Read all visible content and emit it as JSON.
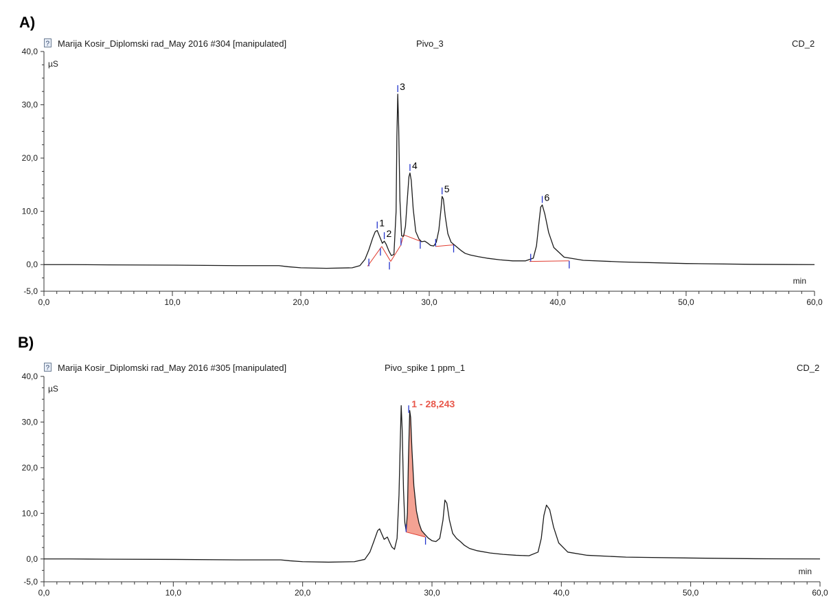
{
  "chart_data": [
    {
      "type": "line",
      "panel_label": "A)",
      "sample_name": "Marija Kosir_Diplomski rad_May 2016 #304 [manipulated]",
      "injection": "Pivo_3",
      "channel": "CD_2",
      "ylabel": "µS",
      "xlabel": "min",
      "xlim": [
        0,
        60
      ],
      "ylim": [
        -5,
        40
      ],
      "x_ticks": [
        "0,0",
        "10,0",
        "20,0",
        "30,0",
        "40,0",
        "50,0",
        "60,0"
      ],
      "y_ticks": [
        "-5,0",
        "0,0",
        "10,0",
        "20,0",
        "30,0",
        "40,0"
      ],
      "series": [
        {
          "x": [
            0,
            2,
            5,
            10,
            15,
            18.3,
            19,
            20,
            22,
            24,
            24.6,
            25.0,
            25.3,
            25.6,
            25.8,
            25.95,
            26.15,
            26.35,
            26.5,
            26.65,
            26.85,
            27.05,
            27.25,
            27.42,
            27.48,
            27.55,
            27.62,
            27.72,
            27.85,
            28.0,
            28.15,
            28.3,
            28.42,
            28.5,
            28.6,
            28.75,
            28.95,
            29.2,
            29.4,
            29.65,
            29.9,
            30.1,
            30.35,
            30.55,
            30.75,
            30.92,
            31.0,
            31.1,
            31.25,
            31.45,
            31.7,
            32.0,
            32.3,
            32.5,
            32.8,
            33.2,
            33.8,
            34.5,
            35.5,
            36.5,
            37.5,
            38.1,
            38.35,
            38.55,
            38.68,
            38.8,
            39.0,
            39.3,
            39.7,
            40.5,
            42,
            45,
            50,
            55,
            60
          ],
          "y": [
            0.0,
            0.0,
            -0.05,
            -0.1,
            -0.2,
            -0.2,
            -0.4,
            -0.6,
            -0.7,
            -0.6,
            -0.2,
            1.0,
            2.8,
            5.0,
            6.2,
            6.4,
            5.2,
            4.0,
            4.4,
            3.8,
            2.6,
            1.7,
            1.9,
            10.0,
            24.0,
            32.0,
            26.0,
            12.0,
            5.4,
            5.3,
            7.2,
            12.5,
            16.5,
            17.2,
            15.8,
            10.5,
            6.2,
            4.8,
            4.3,
            4.4,
            4.0,
            3.6,
            3.5,
            4.2,
            6.5,
            10.5,
            12.8,
            12.3,
            9.0,
            5.8,
            4.2,
            3.6,
            3.0,
            2.6,
            2.1,
            1.8,
            1.5,
            1.2,
            0.9,
            0.7,
            0.7,
            1.2,
            3.5,
            8.0,
            10.8,
            11.2,
            9.5,
            6.0,
            3.2,
            1.4,
            0.8,
            0.5,
            0.2,
            0.05,
            0.0
          ]
        }
      ],
      "baseline_segments": [
        [
          [
            25.2,
            -0.3
          ],
          [
            26.3,
            3.4
          ]
        ],
        [
          [
            26.3,
            3.4
          ],
          [
            27.0,
            0.6
          ]
        ],
        [
          [
            27.0,
            0.6
          ],
          [
            27.8,
            3.7
          ]
        ],
        [
          [
            27.8,
            3.7
          ],
          [
            28.0,
            5.6
          ]
        ],
        [
          [
            28.0,
            5.6
          ],
          [
            29.3,
            4.4
          ]
        ],
        [
          [
            30.5,
            3.4
          ],
          [
            31.9,
            3.7
          ]
        ],
        [
          [
            37.8,
            0.6
          ],
          [
            40.9,
            0.7
          ]
        ]
      ],
      "integration_marks": [
        {
          "x": 25.3,
          "y": -0.3,
          "dir": "up"
        },
        {
          "x": 26.2,
          "y": 3.1,
          "dir": "down"
        },
        {
          "x": 26.9,
          "y": 0.5,
          "dir": "down"
        },
        {
          "x": 27.8,
          "y": 3.6,
          "dir": "up"
        },
        {
          "x": 29.3,
          "y": 4.4,
          "dir": "down"
        },
        {
          "x": 30.5,
          "y": 3.4,
          "dir": "up"
        },
        {
          "x": 31.9,
          "y": 3.7,
          "dir": "down"
        },
        {
          "x": 37.9,
          "y": 0.6,
          "dir": "up"
        },
        {
          "x": 40.9,
          "y": 0.7,
          "dir": "down"
        }
      ],
      "peak_labels": [
        {
          "label": "1",
          "x": 25.95,
          "y": 6.4
        },
        {
          "label": "2",
          "x": 26.5,
          "y": 4.4
        },
        {
          "label": "3",
          "x": 27.55,
          "y": 32.0
        },
        {
          "label": "4",
          "x": 28.5,
          "y": 17.2
        },
        {
          "label": "5",
          "x": 31.0,
          "y": 12.8
        },
        {
          "label": "6",
          "x": 38.8,
          "y": 11.2
        }
      ]
    },
    {
      "type": "line",
      "panel_label": "B)",
      "sample_name": "Marija Kosir_Diplomski rad_May 2016 #305 [manipulated]",
      "injection": "Pivo_spike 1 ppm_1",
      "channel": "CD_2",
      "ylabel": "µS",
      "xlabel": "min",
      "xlim": [
        0,
        60
      ],
      "ylim": [
        -5,
        40
      ],
      "x_ticks": [
        "0,0",
        "10,0",
        "20,0",
        "30,0",
        "40,0",
        "50,0",
        "60,0"
      ],
      "y_ticks": [
        "-5,0",
        "0,0",
        "10,0",
        "20,0",
        "30,0",
        "40,0"
      ],
      "series": [
        {
          "x": [
            0,
            2,
            5,
            10,
            15,
            18.3,
            19,
            20,
            22,
            24,
            24.8,
            25.2,
            25.5,
            25.8,
            25.95,
            26.1,
            26.3,
            26.55,
            26.7,
            26.9,
            27.1,
            27.3,
            27.45,
            27.55,
            27.62,
            27.7,
            27.8,
            27.9,
            28.0,
            28.1,
            28.18,
            28.28,
            28.35,
            28.45,
            28.6,
            28.8,
            29.0,
            29.2,
            29.45,
            29.7,
            30.0,
            30.3,
            30.6,
            30.85,
            31.0,
            31.15,
            31.35,
            31.6,
            31.9,
            32.2,
            32.5,
            32.9,
            33.5,
            34.5,
            35.5,
            36.5,
            37.5,
            38.2,
            38.45,
            38.65,
            38.85,
            39.1,
            39.4,
            39.8,
            40.5,
            42,
            45,
            50,
            55,
            60
          ],
          "y": [
            0.0,
            0.0,
            -0.05,
            -0.1,
            -0.2,
            -0.2,
            -0.4,
            -0.6,
            -0.7,
            -0.6,
            -0.1,
            1.5,
            3.8,
            6.2,
            6.6,
            5.6,
            4.3,
            4.8,
            3.8,
            2.6,
            2.1,
            4.5,
            14.0,
            26.0,
            33.6,
            28.0,
            15.0,
            8.0,
            6.2,
            10.0,
            22.0,
            32.5,
            31.0,
            24.0,
            16.0,
            10.5,
            7.8,
            6.2,
            5.4,
            4.6,
            4.0,
            3.8,
            4.5,
            8.5,
            12.9,
            12.2,
            8.5,
            5.6,
            4.5,
            3.8,
            3.0,
            2.3,
            1.8,
            1.3,
            1.0,
            0.8,
            0.7,
            1.5,
            4.5,
            9.5,
            11.8,
            10.8,
            7.0,
            3.5,
            1.5,
            0.8,
            0.4,
            0.2,
            0.05,
            0.0
          ]
        }
      ],
      "highlight": {
        "label": "1 - 28,243",
        "color": "#f4a293",
        "label_color": "#e8574a",
        "x_start": 28.0,
        "x_end": 29.5,
        "baseline": [
          [
            28.0,
            5.9
          ],
          [
            29.5,
            4.8
          ]
        ]
      },
      "integration_marks": [
        {
          "x": 28.0,
          "y": 5.9,
          "dir": "up"
        },
        {
          "x": 28.2,
          "y": 32.0,
          "dir": "up"
        },
        {
          "x": 29.5,
          "y": 4.8,
          "dir": "down"
        }
      ]
    }
  ]
}
